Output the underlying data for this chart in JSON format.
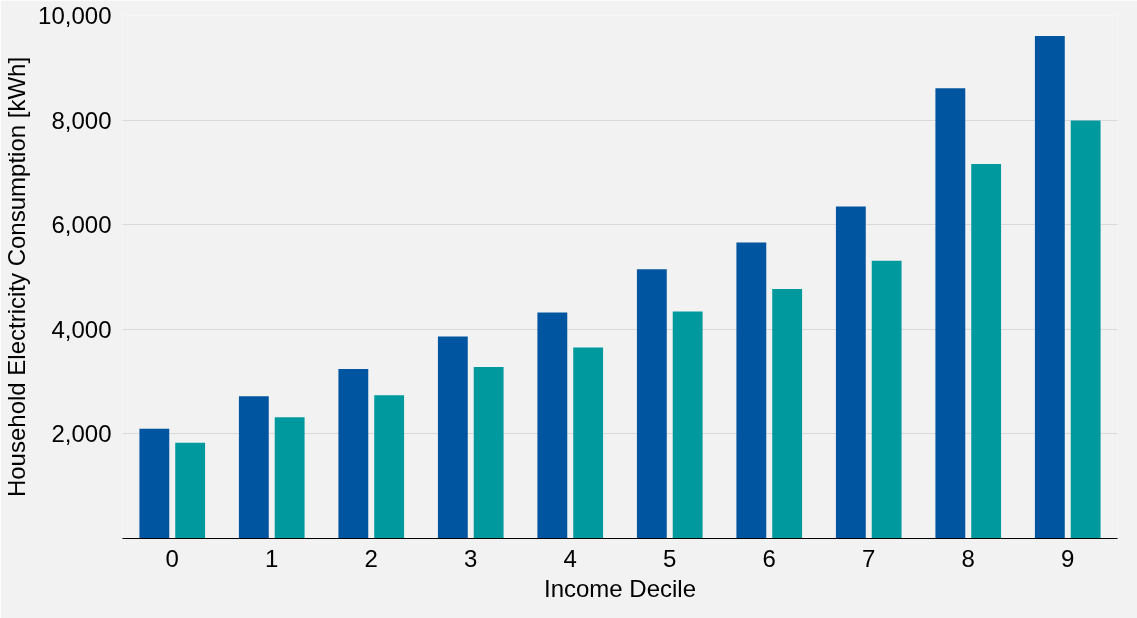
{
  "chart_data": {
    "type": "bar",
    "xlabel": "Income Decile",
    "ylabel": "Household Electricity Consumption [kWh]",
    "categories": [
      "0",
      "1",
      "2",
      "3",
      "4",
      "5",
      "6",
      "7",
      "8",
      "9"
    ],
    "series": [
      {
        "color": "#0055a0",
        "values": [
          2100,
          2720,
          3240,
          3860,
          4320,
          5150,
          5660,
          6350,
          8610,
          9610
        ]
      },
      {
        "color": "#009a9e",
        "values": [
          1830,
          2320,
          2740,
          3280,
          3650,
          4340,
          4770,
          5310,
          7160,
          7990
        ]
      }
    ],
    "ylim": [
      0,
      10000
    ],
    "yticks": [
      {
        "value": 2000,
        "label": "2,000"
      },
      {
        "value": 4000,
        "label": "4,000"
      },
      {
        "value": 6000,
        "label": "6,000"
      },
      {
        "value": 8000,
        "label": "8,000"
      },
      {
        "value": 10000,
        "label": "10,000"
      }
    ],
    "grid": "y"
  }
}
